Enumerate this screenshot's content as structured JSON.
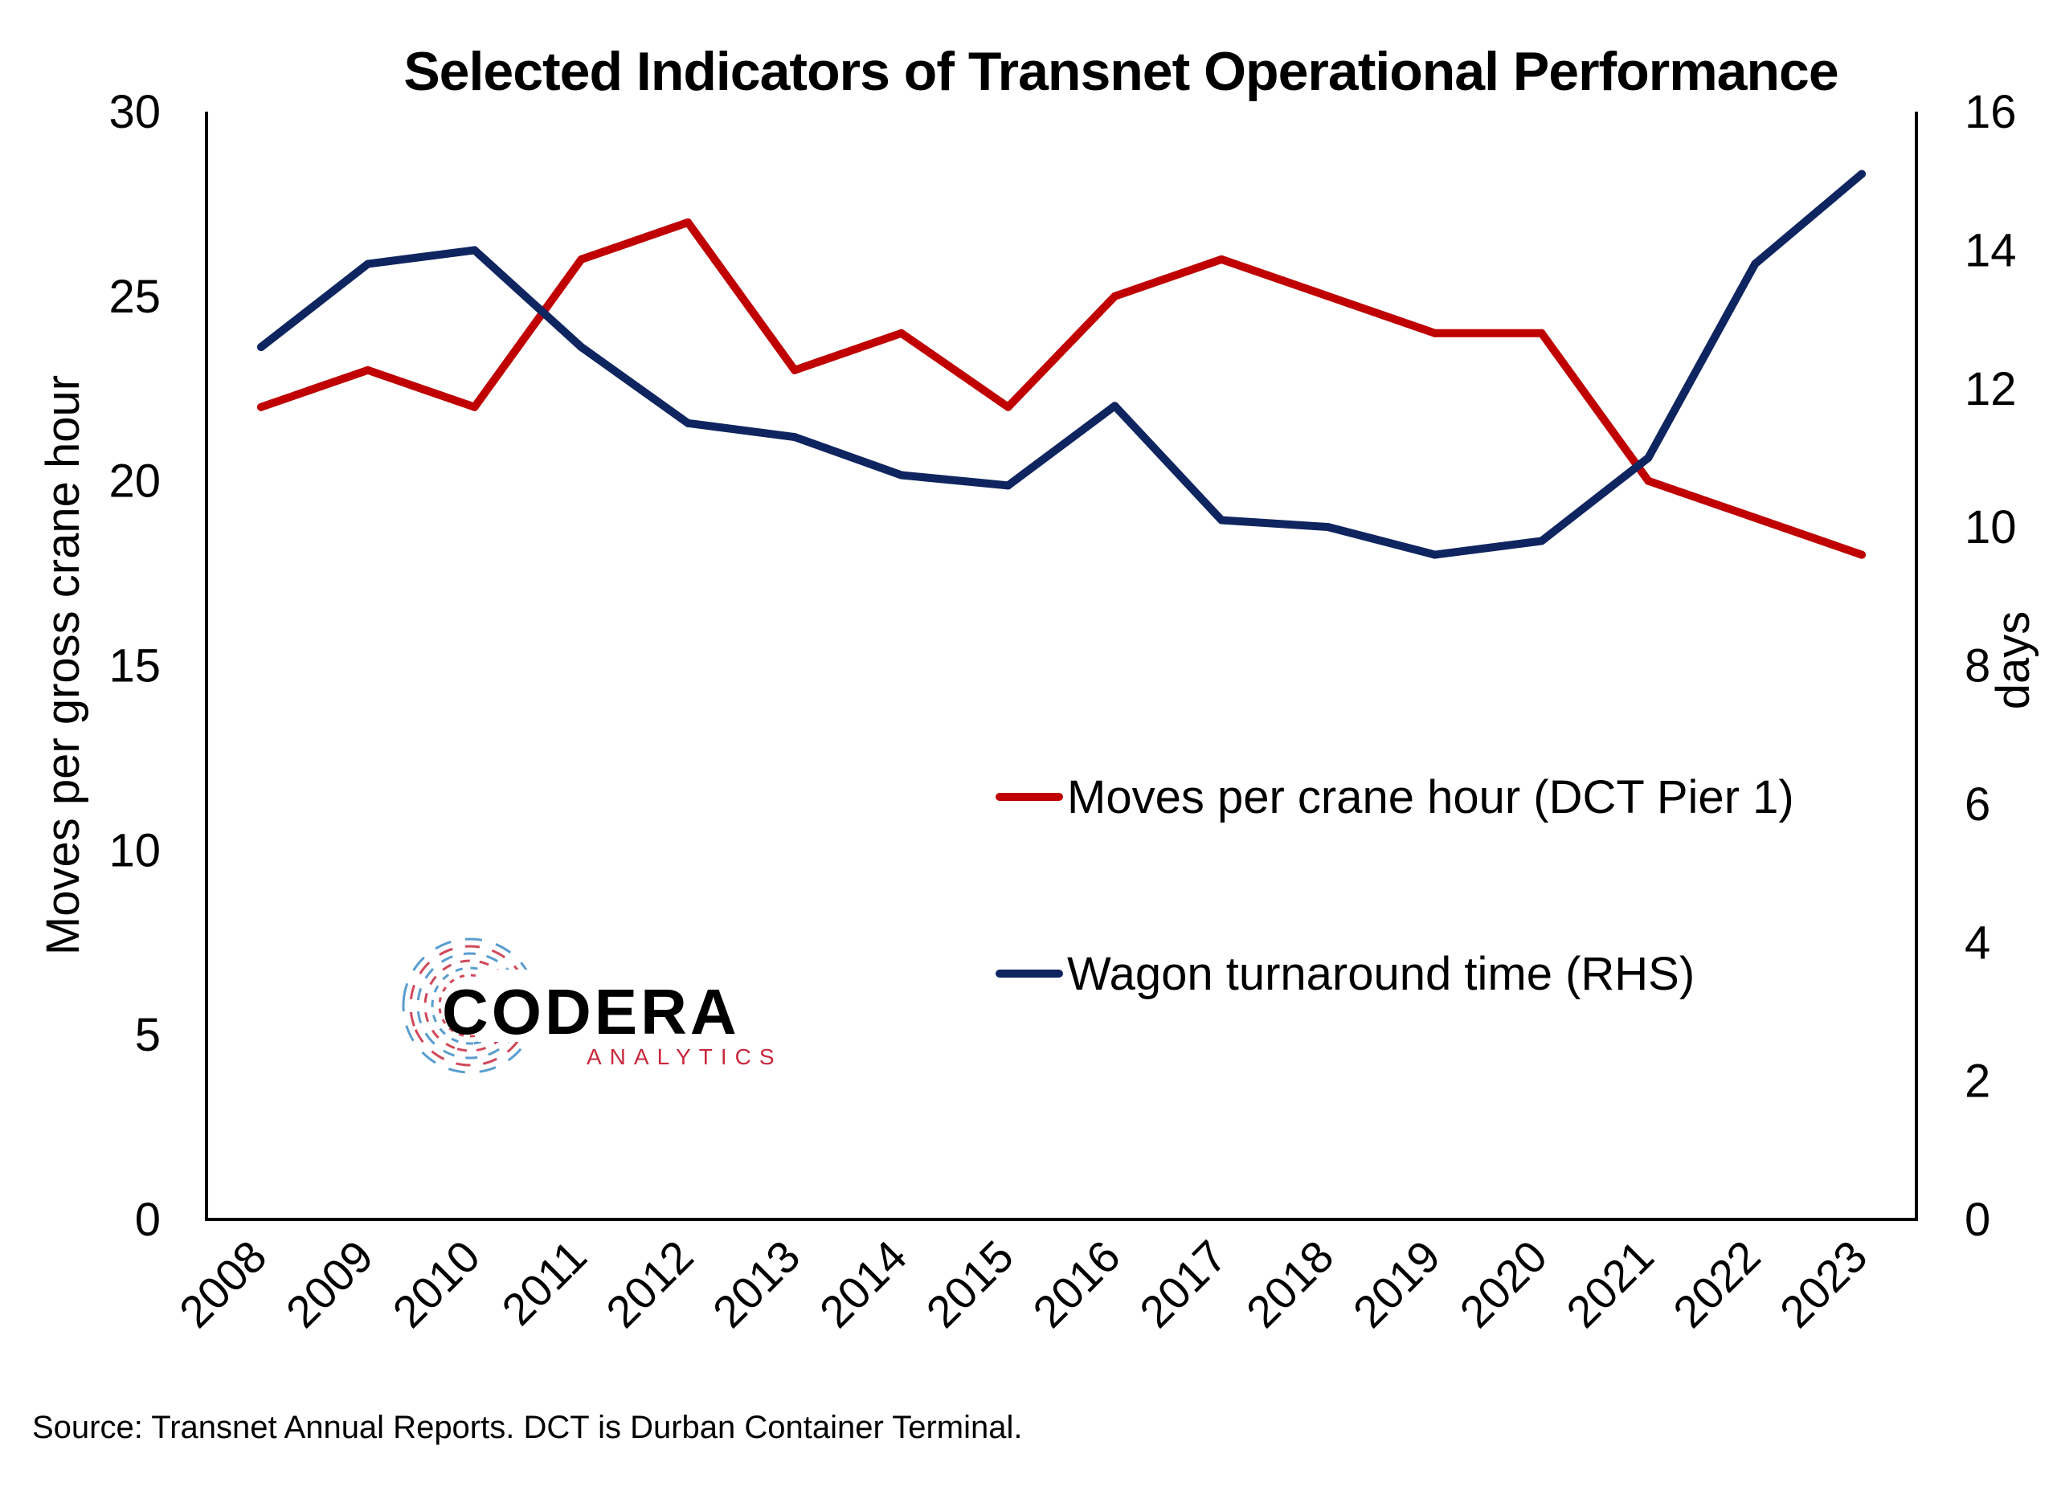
{
  "chart_data": {
    "type": "line",
    "title": "Selected Indicators of Transnet Operational Performance",
    "ylabel": "Moves per gross crane hour",
    "y2label": "days",
    "x": [
      "2008",
      "2009",
      "2010",
      "2011",
      "2012",
      "2013",
      "2014",
      "2015",
      "2016",
      "2017",
      "2018",
      "2019",
      "2020",
      "2021",
      "2022",
      "2023"
    ],
    "ylim": [
      0,
      30
    ],
    "y2lim": [
      0,
      16
    ],
    "yticks": [
      "0",
      "5",
      "10",
      "15",
      "20",
      "25",
      "30"
    ],
    "y2ticks": [
      "0",
      "2",
      "4",
      "6",
      "8",
      "10",
      "12",
      "14",
      "16"
    ],
    "grid": false,
    "legend_position": "right-center",
    "series": [
      {
        "name": "Moves per crane hour (DCT Pier 1)",
        "axis": "left",
        "color": "#C00000",
        "values": [
          22,
          23,
          22,
          26,
          27,
          23,
          24,
          22,
          25,
          26,
          25,
          24,
          24,
          20,
          19,
          18
        ]
      },
      {
        "name": "Wagon turnaround time (RHS)",
        "axis": "right",
        "color": "#0F2560",
        "values": [
          12.6,
          13.8,
          14.0,
          12.6,
          11.5,
          11.3,
          10.75,
          10.6,
          11.75,
          10.1,
          10.0,
          9.6,
          9.8,
          11.0,
          13.8,
          15.1
        ]
      }
    ],
    "source": "Source: Transnet Annual Reports. DCT is Durban Container Terminal."
  },
  "logo": {
    "name": "CODERA",
    "tagline": "ANALYTICS",
    "colors": {
      "red": "#C8283C",
      "blue": "#3C8CC8"
    }
  }
}
